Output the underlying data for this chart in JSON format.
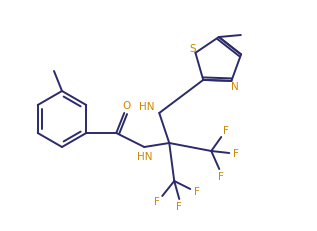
{
  "bg_color": "#ffffff",
  "line_color": "#2b2b6b",
  "atom_colors": {
    "F": "#cc8800",
    "O": "#cc8800",
    "N": "#cc8800",
    "S": "#cc8800"
  },
  "line_width": 1.4,
  "font_size": 7.5,
  "fig_width": 3.17,
  "fig_height": 2.32,
  "dpi": 100
}
